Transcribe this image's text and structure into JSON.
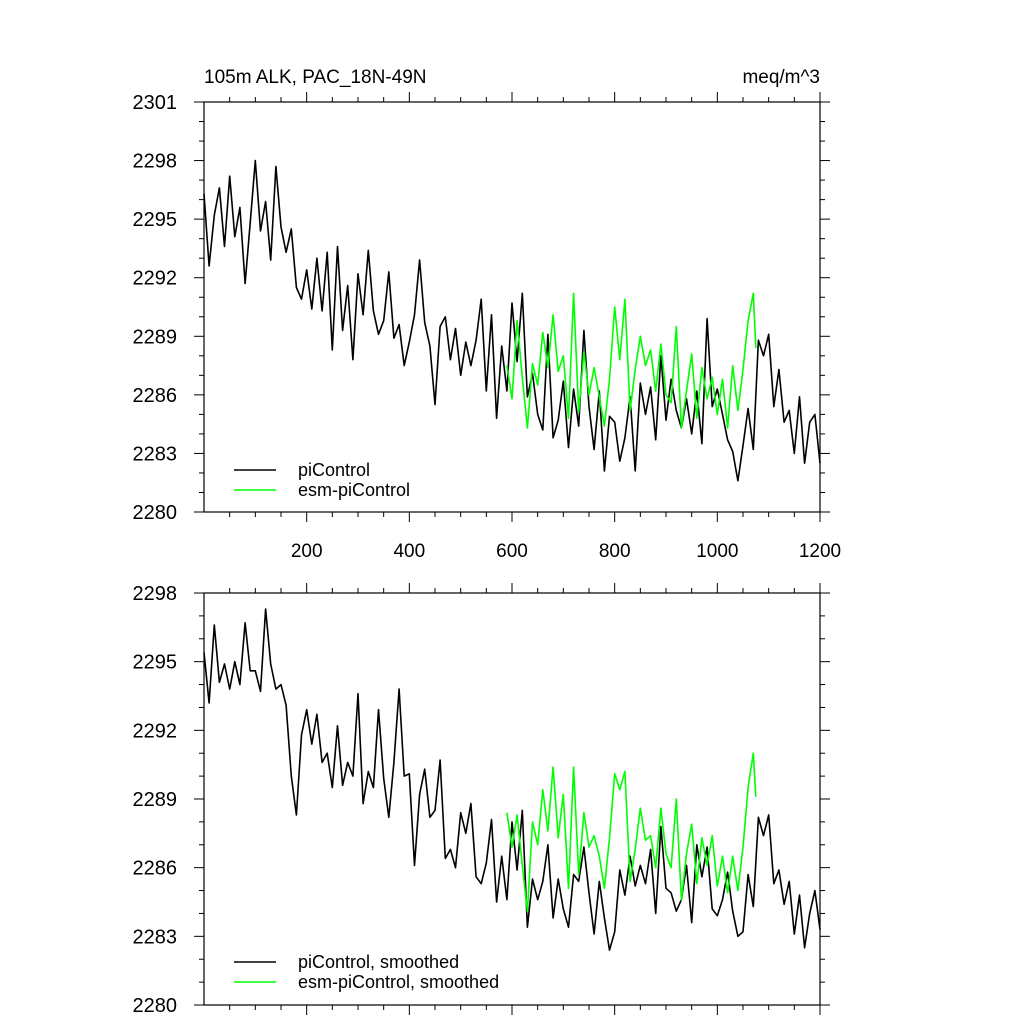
{
  "chart_data": [
    {
      "type": "line",
      "title_left": "105m ALK, PAC_18N-49N",
      "title_right": "meq/m^3",
      "xlim": [
        0,
        1200
      ],
      "ylim": [
        2280,
        2301
      ],
      "x_ticks": [
        200,
        400,
        600,
        800,
        1000,
        1200
      ],
      "x_tick_labels": [
        "200",
        "400",
        "600",
        "800",
        "1000",
        "1200"
      ],
      "y_ticks": [
        2280,
        2283,
        2286,
        2289,
        2292,
        2295,
        2298,
        2301
      ],
      "y_tick_labels": [
        "2280",
        "2283",
        "2286",
        "2289",
        "2292",
        "2295",
        "2298",
        "2301"
      ],
      "series": [
        {
          "name": "piControl",
          "color": "#000000",
          "x": [
            0,
            10,
            20,
            30,
            40,
            50,
            60,
            70,
            80,
            90,
            100,
            110,
            120,
            130,
            140,
            150,
            160,
            170,
            180,
            190,
            200,
            210,
            220,
            230,
            240,
            250,
            260,
            270,
            280,
            290,
            300,
            310,
            320,
            330,
            340,
            350,
            360,
            370,
            380,
            390,
            400,
            410,
            420,
            430,
            440,
            450,
            460,
            470,
            480,
            490,
            500,
            510,
            520,
            530,
            540,
            550,
            560,
            570,
            580,
            590,
            600,
            610,
            620,
            630,
            640,
            650,
            660,
            670,
            680,
            690,
            700,
            710,
            720,
            730,
            740,
            750,
            760,
            770,
            780,
            790,
            800,
            810,
            820,
            830,
            840,
            850,
            860,
            870,
            880,
            890,
            900,
            910,
            920,
            930,
            940,
            950,
            960,
            970,
            980,
            990,
            1000,
            1010,
            1020,
            1030,
            1040,
            1050,
            1060,
            1070,
            1080,
            1090,
            1100,
            1110,
            1120,
            1130,
            1140,
            1150,
            1160,
            1170,
            1180,
            1190,
            1200
          ],
          "values": [
            2296.3,
            2292.6,
            2295.2,
            2296.6,
            2293.6,
            2297.2,
            2294.1,
            2295.6,
            2291.7,
            2294.8,
            2298.0,
            2294.4,
            2295.9,
            2292.9,
            2297.7,
            2294.6,
            2293.3,
            2294.5,
            2291.5,
            2290.9,
            2292.4,
            2290.4,
            2293.0,
            2290.3,
            2293.3,
            2288.3,
            2293.6,
            2289.3,
            2291.6,
            2287.8,
            2292.2,
            2290.1,
            2293.4,
            2290.3,
            2289.1,
            2289.8,
            2292.3,
            2288.9,
            2289.6,
            2287.5,
            2288.7,
            2290.1,
            2292.9,
            2289.7,
            2288.5,
            2285.5,
            2289.5,
            2290.0,
            2287.8,
            2289.4,
            2287.0,
            2288.7,
            2287.5,
            2288.8,
            2290.9,
            2286.2,
            2290.1,
            2284.8,
            2288.5,
            2286.2,
            2290.7,
            2287.7,
            2291.2,
            2285.9,
            2287.1,
            2285.0,
            2284.2,
            2289.1,
            2283.8,
            2284.7,
            2286.7,
            2283.3,
            2286.3,
            2284.4,
            2289.3,
            2285.4,
            2283.2,
            2286.2,
            2282.1,
            2284.9,
            2284.6,
            2282.6,
            2283.8,
            2285.9,
            2282.1,
            2286.6,
            2285.0,
            2286.4,
            2283.7,
            2288.0,
            2284.7,
            2286.8,
            2285.2,
            2284.3,
            2285.8,
            2284.0,
            2286.2,
            2283.5,
            2289.9,
            2285.4,
            2286.3,
            2285.0,
            2283.7,
            2283.1,
            2281.6,
            2283.4,
            2285.3,
            2283.2,
            2288.8,
            2288.0,
            2289.1,
            2285.4,
            2287.3,
            2284.6,
            2285.2,
            2283.0,
            2285.9,
            2282.5,
            2284.6,
            2285.0,
            2282.5
          ]
        },
        {
          "name": "esm-piControl",
          "color": "#00ff00",
          "x": [
            590,
            600,
            610,
            620,
            630,
            640,
            650,
            660,
            670,
            680,
            690,
            700,
            710,
            720,
            730,
            740,
            750,
            760,
            770,
            780,
            790,
            800,
            810,
            820,
            830,
            840,
            850,
            860,
            870,
            880,
            890,
            900,
            910,
            920,
            930,
            940,
            950,
            960,
            970,
            980,
            990,
            1000,
            1010,
            1020,
            1030,
            1040,
            1050,
            1060,
            1070,
            1075
          ],
          "values": [
            2287.5,
            2285.8,
            2289.8,
            2286.9,
            2284.3,
            2287.6,
            2286.5,
            2289.2,
            2287.4,
            2290.1,
            2287.2,
            2288.0,
            2284.8,
            2291.2,
            2285.1,
            2288.2,
            2286.0,
            2287.4,
            2285.9,
            2284.4,
            2286.8,
            2290.5,
            2287.8,
            2290.9,
            2285.2,
            2287.3,
            2289.0,
            2287.5,
            2288.3,
            2286.2,
            2288.6,
            2286.0,
            2285.6,
            2289.5,
            2284.3,
            2286.2,
            2288.1,
            2284.8,
            2287.4,
            2285.8,
            2286.9,
            2285.0,
            2286.8,
            2284.3,
            2287.5,
            2285.2,
            2287.3,
            2289.8,
            2291.2,
            2288.4
          ]
        }
      ],
      "legend": [
        "piControl",
        "esm-piControl"
      ],
      "legend_position": "bottom-left"
    },
    {
      "type": "line",
      "xlim": [
        0,
        1200
      ],
      "ylim": [
        2280,
        2298
      ],
      "y_ticks": [
        2280,
        2283,
        2286,
        2289,
        2292,
        2295,
        2298
      ],
      "y_tick_labels": [
        "2280",
        "2283",
        "2286",
        "2289",
        "2292",
        "2295",
        "2298"
      ],
      "series": [
        {
          "name": "piControl, smoothed",
          "color": "#000000",
          "x": [
            0,
            10,
            20,
            30,
            40,
            50,
            60,
            70,
            80,
            90,
            100,
            110,
            120,
            130,
            140,
            150,
            160,
            170,
            180,
            190,
            200,
            210,
            220,
            230,
            240,
            250,
            260,
            270,
            280,
            290,
            300,
            310,
            320,
            330,
            340,
            350,
            360,
            370,
            380,
            390,
            400,
            410,
            420,
            430,
            440,
            450,
            460,
            470,
            480,
            490,
            500,
            510,
            520,
            530,
            540,
            550,
            560,
            570,
            580,
            590,
            600,
            610,
            620,
            630,
            640,
            650,
            660,
            670,
            680,
            690,
            700,
            710,
            720,
            730,
            740,
            750,
            760,
            770,
            780,
            790,
            800,
            810,
            820,
            830,
            840,
            850,
            860,
            870,
            880,
            890,
            900,
            910,
            920,
            930,
            940,
            950,
            960,
            970,
            980,
            990,
            1000,
            1010,
            1020,
            1030,
            1040,
            1050,
            1060,
            1070,
            1080,
            1090,
            1100,
            1110,
            1120,
            1130,
            1140,
            1150,
            1160,
            1170,
            1180,
            1190,
            1200
          ],
          "values": [
            2295.4,
            2293.2,
            2296.6,
            2294.1,
            2294.9,
            2293.8,
            2295.0,
            2294.0,
            2296.7,
            2294.6,
            2294.6,
            2293.7,
            2297.3,
            2294.9,
            2293.8,
            2294.0,
            2293.1,
            2290.0,
            2288.3,
            2291.8,
            2292.9,
            2291.4,
            2292.7,
            2290.6,
            2291.0,
            2289.5,
            2292.2,
            2289.6,
            2290.6,
            2290.0,
            2293.6,
            2288.8,
            2290.2,
            2289.5,
            2292.9,
            2289.9,
            2288.2,
            2290.6,
            2293.8,
            2290.0,
            2290.1,
            2286.1,
            2289.2,
            2290.3,
            2288.2,
            2288.5,
            2290.7,
            2286.4,
            2286.8,
            2286.0,
            2288.4,
            2287.5,
            2288.8,
            2285.6,
            2285.3,
            2286.2,
            2288.1,
            2284.5,
            2286.5,
            2284.6,
            2288.0,
            2285.9,
            2288.5,
            2283.4,
            2285.5,
            2284.6,
            2285.4,
            2287.0,
            2283.8,
            2285.5,
            2284.2,
            2283.4,
            2285.7,
            2285.4,
            2286.9,
            2284.9,
            2283.1,
            2285.4,
            2283.8,
            2282.4,
            2283.2,
            2285.9,
            2284.8,
            2286.5,
            2285.2,
            2286.1,
            2285.3,
            2286.8,
            2284.0,
            2287.8,
            2285.1,
            2284.9,
            2284.1,
            2284.6,
            2286.1,
            2283.6,
            2287.0,
            2285.6,
            2286.9,
            2284.2,
            2283.9,
            2284.6,
            2285.8,
            2284.1,
            2283.0,
            2283.2,
            2285.7,
            2284.3,
            2288.2,
            2287.4,
            2288.3,
            2285.3,
            2285.9,
            2284.4,
            2285.4,
            2283.1,
            2284.8,
            2282.5,
            2284.0,
            2285.0,
            2283.3
          ]
        },
        {
          "name": "esm-piControl, smoothed",
          "color": "#00ff00",
          "x": [
            590,
            600,
            610,
            620,
            630,
            640,
            650,
            660,
            670,
            680,
            690,
            700,
            710,
            720,
            730,
            740,
            750,
            760,
            770,
            780,
            790,
            800,
            810,
            820,
            830,
            840,
            850,
            860,
            870,
            880,
            890,
            900,
            910,
            920,
            930,
            940,
            950,
            960,
            970,
            980,
            990,
            1000,
            1010,
            1020,
            1030,
            1040,
            1050,
            1060,
            1070,
            1075
          ],
          "values": [
            2288.4,
            2286.9,
            2288.3,
            2286.1,
            2284.1,
            2288.0,
            2287.0,
            2289.4,
            2287.6,
            2290.4,
            2287.3,
            2289.2,
            2285.1,
            2290.4,
            2285.7,
            2288.4,
            2286.9,
            2287.4,
            2286.5,
            2285.1,
            2287.3,
            2290.1,
            2289.4,
            2290.2,
            2285.4,
            2286.8,
            2288.6,
            2287.2,
            2287.4,
            2286.0,
            2288.6,
            2286.6,
            2286.0,
            2289.0,
            2284.6,
            2286.6,
            2287.9,
            2285.3,
            2287.3,
            2286.1,
            2287.4,
            2285.2,
            2286.5,
            2284.9,
            2286.5,
            2285.0,
            2286.9,
            2289.5,
            2291.0,
            2289.1
          ]
        }
      ],
      "legend": [
        "piControl, smoothed",
        "esm-piControl, smoothed"
      ],
      "legend_position": "bottom-left"
    }
  ]
}
